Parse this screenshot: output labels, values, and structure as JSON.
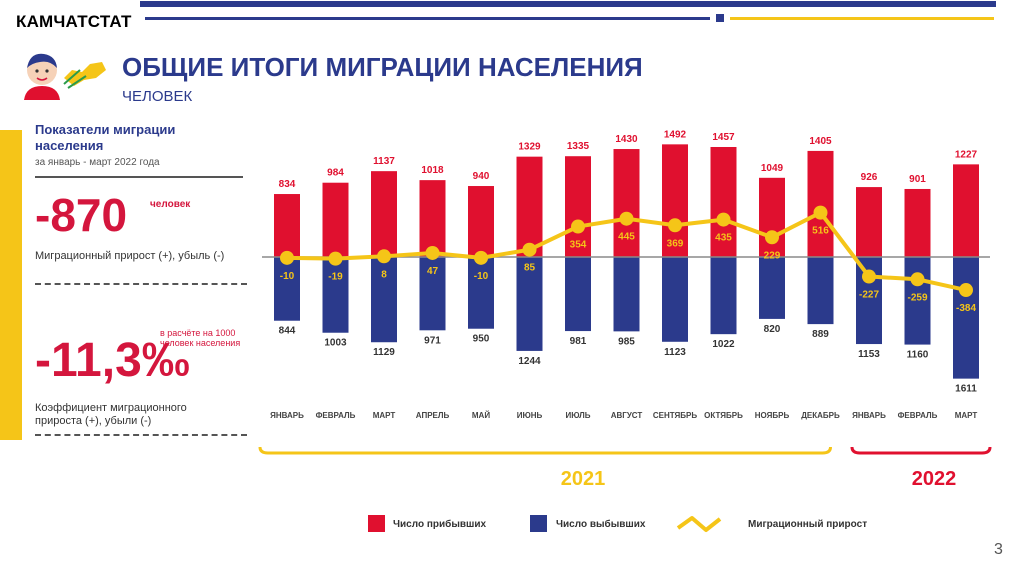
{
  "header": {
    "brand": "КАМЧАТСТАТ",
    "title": "ОБЩИЕ ИТОГИ МИГРАЦИИ НАСЕЛЕНИЯ",
    "subtitle": "ЧЕЛОВЕК"
  },
  "panel": {
    "title": "Показатели миграции населения",
    "subtitle": "за январь - март 2022 года",
    "value1": "-870",
    "value1_unit": "человек",
    "value1_desc": "Миграционный прирост (+), убыль (-)",
    "value2_note": "в расчёте на 1000 человек населения",
    "value2": "-11,3‰",
    "value2_desc": "Коэффициент миграционного прироста (+), убыли (-)"
  },
  "colors": {
    "arrivals": "#e0102f",
    "departures": "#2b3a8c",
    "growth": "#f5c518",
    "accent_2022": "#e0102f",
    "accent_2021": "#f5c518"
  },
  "chart_data": {
    "type": "bar",
    "categories": [
      "ЯНВАРЬ",
      "ФЕВРАЛЬ",
      "МАРТ",
      "АПРЕЛЬ",
      "МАЙ",
      "ИЮНЬ",
      "ИЮЛЬ",
      "АВГУСТ",
      "СЕНТЯБРЬ",
      "ОКТЯБРЬ",
      "НОЯБРЬ",
      "ДЕКАБРЬ",
      "ЯНВАРЬ",
      "ФЕВРАЛЬ",
      "МАРТ"
    ],
    "series": [
      {
        "name": "Число прибывших",
        "values": [
          834,
          984,
          1137,
          1018,
          940,
          1329,
          1335,
          1430,
          1492,
          1457,
          1049,
          1405,
          926,
          901,
          1227
        ]
      },
      {
        "name": "Число выбывших",
        "values": [
          844,
          1003,
          1129,
          971,
          950,
          1244,
          981,
          985,
          1123,
          1022,
          820,
          889,
          1153,
          1160,
          1611
        ]
      },
      {
        "name": "Миграционный прирост",
        "values": [
          -10,
          -19,
          8,
          47,
          -10,
          85,
          354,
          445,
          369,
          435,
          229,
          516,
          -227,
          -259,
          -384
        ]
      }
    ],
    "groups": [
      {
        "label": "2021",
        "from": 0,
        "to": 11
      },
      {
        "label": "2022",
        "from": 12,
        "to": 14
      }
    ]
  }
}
